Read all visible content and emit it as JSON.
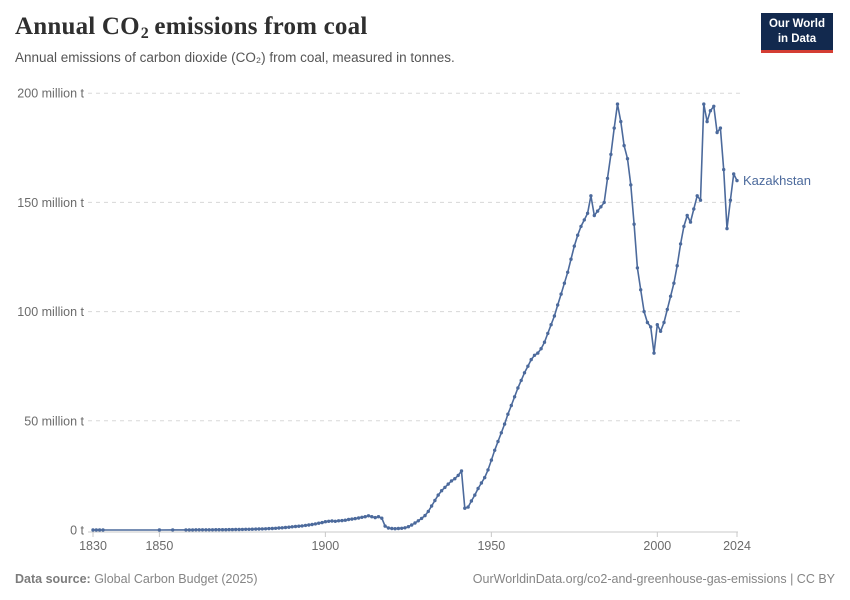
{
  "header": {
    "title_part1": "Annual CO",
    "title_sub": "2",
    "title_part2": " emissions from coal",
    "subtitle": "Annual emissions of carbon dioxide (CO₂) from coal, measured in tonnes."
  },
  "logo": {
    "line1": "Our World",
    "line2": "in Data"
  },
  "footer": {
    "source_label": "Data source:",
    "source_value": " Global Carbon Budget (2025)",
    "url": "OurWorldinData.org/co2-and-greenhouse-gas-emissions",
    "license": " | CC BY"
  },
  "colors": {
    "line": "#4C6A9C",
    "entity_label": "#4C6A9C",
    "grid": "#d8d8d8",
    "axis_line": "#c8c8c8",
    "tick_text": "#6b6b6b",
    "logo_bg": "#12294e",
    "logo_red": "#d43d33"
  },
  "chart_data": {
    "type": "line",
    "title": "Annual CO2 emissions from coal",
    "unit": "tonnes",
    "entity": "Kazakhstan",
    "xlim": [
      1830,
      2024
    ],
    "ylim": [
      0,
      200
    ],
    "grid": "dashed-horizontal",
    "legend_position": "end-of-line-label",
    "xticks": [
      {
        "v": 1830,
        "label": "1830"
      },
      {
        "v": 1850,
        "label": "1850"
      },
      {
        "v": 1900,
        "label": "1900"
      },
      {
        "v": 1950,
        "label": "1950"
      },
      {
        "v": 2000,
        "label": "2000"
      },
      {
        "v": 2024,
        "label": "2024"
      }
    ],
    "yticks": [
      {
        "v": 0,
        "label": "0 t"
      },
      {
        "v": 50,
        "label": "50 million t"
      },
      {
        "v": 100,
        "label": "100 million t"
      },
      {
        "v": 150,
        "label": "150 million t"
      },
      {
        "v": 200,
        "label": "200 million t"
      }
    ],
    "series": [
      {
        "name": "Kazakhstan",
        "x": [
          1830,
          1831,
          1832,
          1833,
          1850,
          1854,
          1858,
          1859,
          1860,
          1861,
          1862,
          1863,
          1864,
          1865,
          1866,
          1867,
          1868,
          1869,
          1870,
          1871,
          1872,
          1873,
          1874,
          1875,
          1876,
          1877,
          1878,
          1879,
          1880,
          1881,
          1882,
          1883,
          1884,
          1885,
          1886,
          1887,
          1888,
          1889,
          1890,
          1891,
          1892,
          1893,
          1894,
          1895,
          1896,
          1897,
          1898,
          1899,
          1900,
          1901,
          1902,
          1903,
          1904,
          1905,
          1906,
          1907,
          1908,
          1909,
          1910,
          1911,
          1912,
          1913,
          1914,
          1915,
          1916,
          1917,
          1918,
          1919,
          1920,
          1921,
          1922,
          1923,
          1924,
          1925,
          1926,
          1927,
          1928,
          1929,
          1930,
          1931,
          1932,
          1933,
          1934,
          1935,
          1936,
          1937,
          1938,
          1939,
          1940,
          1941,
          1942,
          1943,
          1944,
          1945,
          1946,
          1947,
          1948,
          1949,
          1950,
          1951,
          1952,
          1953,
          1954,
          1955,
          1956,
          1957,
          1958,
          1959,
          1960,
          1961,
          1962,
          1963,
          1964,
          1965,
          1966,
          1967,
          1968,
          1969,
          1970,
          1971,
          1972,
          1973,
          1974,
          1975,
          1976,
          1977,
          1978,
          1979,
          1980,
          1981,
          1982,
          1983,
          1984,
          1985,
          1986,
          1987,
          1988,
          1989,
          1990,
          1991,
          1992,
          1993,
          1994,
          1995,
          1996,
          1997,
          1998,
          1999,
          2000,
          2001,
          2002,
          2003,
          2004,
          2005,
          2006,
          2007,
          2008,
          2009,
          2010,
          2011,
          2012,
          2013,
          2014,
          2015,
          2016,
          2017,
          2018,
          2019,
          2020,
          2021,
          2022,
          2023,
          2024
        ],
        "y": [
          0.01,
          0.01,
          0.015,
          0.015,
          0.02,
          0.03,
          0.05,
          0.05,
          0.06,
          0.07,
          0.07,
          0.08,
          0.09,
          0.1,
          0.11,
          0.12,
          0.13,
          0.14,
          0.16,
          0.18,
          0.2,
          0.22,
          0.24,
          0.27,
          0.3,
          0.33,
          0.36,
          0.4,
          0.44,
          0.5,
          0.56,
          0.63,
          0.7,
          0.8,
          0.9,
          1.0,
          1.15,
          1.3,
          1.45,
          1.6,
          1.75,
          1.9,
          2.1,
          2.3,
          2.5,
          2.8,
          3.1,
          3.4,
          3.8,
          4.0,
          4.1,
          4.0,
          4.2,
          4.3,
          4.5,
          4.8,
          5.0,
          5.2,
          5.5,
          5.8,
          6.1,
          6.5,
          6.1,
          5.7,
          6.1,
          5.4,
          1.8,
          0.9,
          0.7,
          0.6,
          0.7,
          0.8,
          1.0,
          1.5,
          2.3,
          3.2,
          4.2,
          5.3,
          6.6,
          8.5,
          11,
          13.5,
          16,
          18,
          19.5,
          21,
          22.5,
          23.5,
          25,
          27,
          10,
          10.5,
          13.3,
          16,
          19,
          21.5,
          24,
          27.5,
          32,
          36.5,
          40.5,
          44.5,
          48.5,
          53,
          57,
          61,
          65,
          68.5,
          72,
          75,
          78,
          80,
          81,
          83,
          86,
          90,
          94,
          98,
          103,
          108,
          113,
          118,
          124,
          130,
          135,
          139,
          142,
          145,
          153,
          144,
          146,
          148,
          150,
          161,
          172,
          184,
          195,
          187,
          176,
          170,
          158,
          140,
          120,
          110,
          100,
          95,
          93,
          81,
          94,
          91,
          95,
          101,
          107,
          113,
          121,
          131,
          139,
          144,
          141,
          147,
          153,
          151,
          195,
          187,
          192,
          194,
          182,
          184,
          165,
          138,
          151,
          163,
          160
        ]
      }
    ]
  }
}
